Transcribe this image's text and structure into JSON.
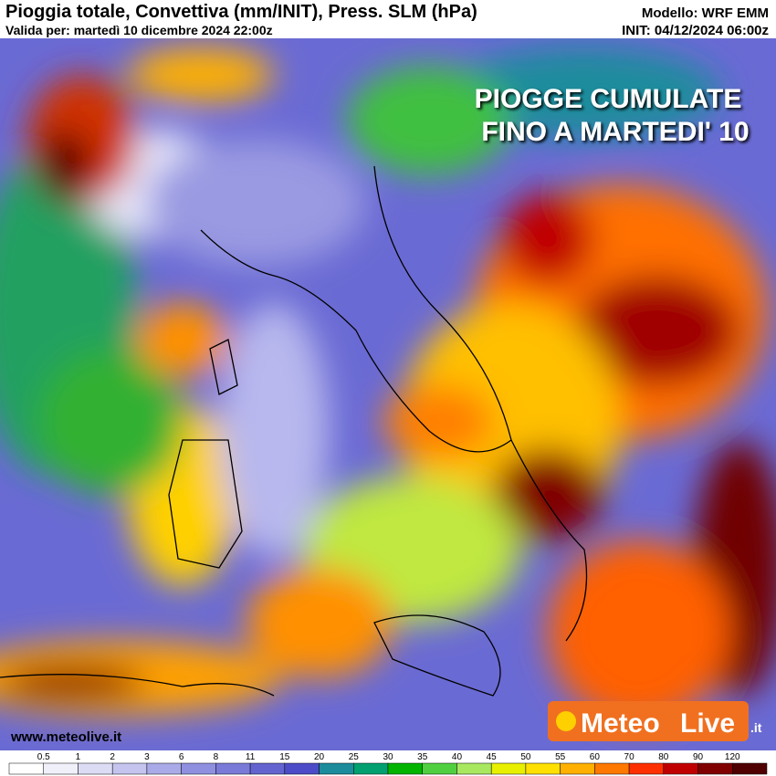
{
  "header": {
    "title": "Pioggia totale, Convettiva (mm/INIT), Press. SLM (hPa)",
    "valid": "Valida per: martedì 10 dicembre 2024 22:00z",
    "model": "Modello: WRF EMM",
    "init": "INIT: 04/12/2024 06:00z"
  },
  "overlay": {
    "line1": "PIOGGE CUMULATE",
    "line2": "FINO A MARTEDI' 10"
  },
  "footer": {
    "website": "www.meteolive.it",
    "logo_a": "Meteo",
    "logo_b": "Live",
    "logo_c": ".it"
  },
  "legend": {
    "labels": [
      "0.5",
      "1",
      "2",
      "3",
      "6",
      "8",
      "11",
      "15",
      "20",
      "25",
      "30",
      "35",
      "40",
      "45",
      "50",
      "55",
      "60",
      "70",
      "80",
      "90",
      "120"
    ],
    "colors": [
      "#ffffff",
      "#f0f0fa",
      "#dcdcf5",
      "#c4c4ef",
      "#aaaae8",
      "#9090e0",
      "#7a7ad8",
      "#6464d0",
      "#4c4cc8",
      "#1c8c9c",
      "#00a070",
      "#00b400",
      "#50d040",
      "#a8e860",
      "#e8f000",
      "#ffe000",
      "#ffb000",
      "#ff7800",
      "#ff3000",
      "#c00000",
      "#800000",
      "#500000"
    ]
  }
}
